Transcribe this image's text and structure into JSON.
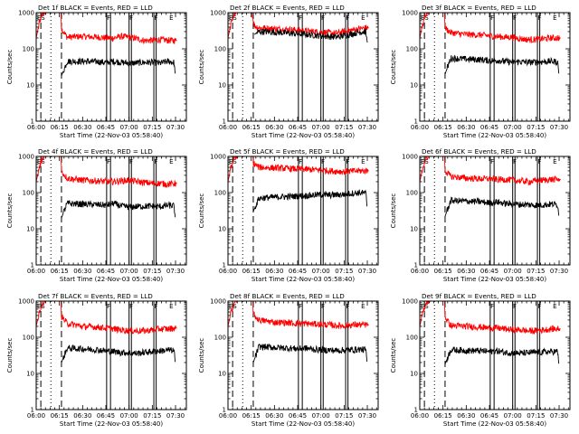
{
  "figure": {
    "background": "#ffffff",
    "event_color": "#000000",
    "lld_color": "#ff0000"
  },
  "chart_data": [
    {
      "type": "line",
      "title": "Det 1f BLACK = Events, RED = LLD",
      "xlabel": "Start Time (22-Nov-03 05:58:40)",
      "ylabel": "Counts/sec",
      "x_ticks": [
        "06:00",
        "06:15",
        "06:30",
        "06:45",
        "07:00",
        "07:15",
        "07:30"
      ],
      "y_ticks": [
        "1",
        "10",
        "100",
        "1000"
      ],
      "ylim": [
        1,
        1000
      ],
      "y_scale": "log",
      "marker_labels": [
        "ES",
        "F",
        "F",
        "F",
        "E"
      ],
      "series": [
        {
          "x": [
            "06:00",
            "06:02",
            "06:04",
            "06:08",
            "06:12",
            "06:16",
            "06:16:20",
            "06:20",
            "06:30",
            "06:40",
            "06:45",
            "06:50",
            "06:55",
            "07:00",
            "07:05",
            "07:10",
            "07:15",
            "07:20",
            "07:25",
            "07:30",
            "07:31"
          ],
          "values": [
            200,
            500,
            900,
            1300,
            1300,
            1300,
            360,
            210,
            220,
            210,
            200,
            200,
            220,
            210,
            190,
            170,
            170,
            180,
            170,
            170,
            170
          ],
          "color": "#ff0000"
        },
        {
          "x": [
            "06:16:20",
            "06:20",
            "06:30",
            "06:40",
            "06:45",
            "06:50",
            "06:55",
            "07:00",
            "07:05",
            "07:10",
            "07:15",
            "07:20",
            "07:25",
            "07:29",
            "07:30"
          ],
          "values": [
            18,
            45,
            45,
            44,
            42,
            45,
            42,
            40,
            41,
            42,
            42,
            40,
            45,
            42,
            18
          ],
          "color": "#000000"
        }
      ]
    },
    {
      "type": "line",
      "title": "Det 2f BLACK = Events, RED = LLD",
      "xlabel": "Start Time (22-Nov-03 05:58:40)",
      "ylabel": "Counts/sec",
      "x_ticks": [
        "06:00",
        "06:15",
        "06:30",
        "06:45",
        "07:00",
        "07:15",
        "07:30"
      ],
      "y_ticks": [
        "1",
        "10",
        "100",
        "1000"
      ],
      "ylim": [
        1,
        1000
      ],
      "y_scale": "log",
      "marker_labels": [
        "ES",
        "F",
        "F",
        "F",
        "E"
      ],
      "series": [
        {
          "x": [
            "06:00",
            "06:02",
            "06:04",
            "06:08",
            "06:12",
            "06:15",
            "06:17",
            "06:20",
            "06:30",
            "06:40",
            "06:45",
            "06:50",
            "06:55",
            "07:00",
            "07:05",
            "07:10",
            "07:15",
            "07:20",
            "07:25",
            "07:30",
            "07:31"
          ],
          "values": [
            200,
            500,
            900,
            1300,
            1300,
            1300,
            440,
            380,
            360,
            340,
            330,
            310,
            300,
            290,
            280,
            270,
            300,
            330,
            360,
            380,
            380
          ],
          "color": "#ff0000"
        },
        {
          "x": [
            "06:17",
            "06:20",
            "06:30",
            "06:40",
            "06:45",
            "06:50",
            "06:55",
            "07:00",
            "07:05",
            "07:10",
            "07:15",
            "07:20",
            "07:25",
            "07:29",
            "07:30"
          ],
          "values": [
            250,
            300,
            290,
            270,
            260,
            250,
            240,
            230,
            220,
            210,
            230,
            260,
            290,
            300,
            150
          ],
          "color": "#000000"
        }
      ]
    },
    {
      "type": "line",
      "title": "Det 3f BLACK = Events, RED = LLD",
      "xlabel": "Start Time (22-Nov-03 05:58:40)",
      "ylabel": "Counts/sec",
      "x_ticks": [
        "06:00",
        "06:15",
        "06:30",
        "06:45",
        "07:00",
        "07:15",
        "07:30"
      ],
      "y_ticks": [
        "1",
        "10",
        "100",
        "1000"
      ],
      "ylim": [
        1,
        1000
      ],
      "y_scale": "log",
      "marker_labels": [
        "ES",
        "F",
        "F",
        "F",
        "E"
      ],
      "series": [
        {
          "x": [
            "06:00",
            "06:02",
            "06:04",
            "06:08",
            "06:12",
            "06:16",
            "06:16:20",
            "06:20",
            "06:30",
            "06:40",
            "06:45",
            "06:50",
            "06:55",
            "07:00",
            "07:05",
            "07:10",
            "07:15",
            "07:20",
            "07:25",
            "07:30",
            "07:31"
          ],
          "values": [
            200,
            500,
            900,
            1300,
            1300,
            1300,
            380,
            280,
            250,
            240,
            230,
            220,
            210,
            210,
            190,
            180,
            180,
            190,
            200,
            200,
            200
          ],
          "color": "#ff0000"
        },
        {
          "x": [
            "06:16:20",
            "06:20",
            "06:30",
            "06:40",
            "06:45",
            "06:50",
            "06:55",
            "07:00",
            "07:05",
            "07:10",
            "07:15",
            "07:20",
            "07:25",
            "07:29",
            "07:30"
          ],
          "values": [
            20,
            55,
            52,
            50,
            47,
            48,
            45,
            43,
            44,
            42,
            43,
            44,
            45,
            44,
            18
          ],
          "color": "#000000"
        }
      ]
    },
    {
      "type": "line",
      "title": "Det 4f BLACK = Events, RED = LLD",
      "xlabel": "Start Time (22-Nov-03 05:58:40)",
      "ylabel": "Counts/sec",
      "x_ticks": [
        "06:00",
        "06:15",
        "06:30",
        "06:45",
        "07:00",
        "07:15",
        "07:30"
      ],
      "y_ticks": [
        "1",
        "10",
        "100",
        "1000"
      ],
      "ylim": [
        1,
        1000
      ],
      "y_scale": "log",
      "marker_labels": [
        "ES",
        "F",
        "F",
        "F",
        "E"
      ],
      "series": [
        {
          "x": [
            "06:00",
            "06:02",
            "06:04",
            "06:08",
            "06:12",
            "06:16",
            "06:16:20",
            "06:20",
            "06:30",
            "06:40",
            "06:45",
            "06:50",
            "06:55",
            "07:00",
            "07:05",
            "07:10",
            "07:15",
            "07:20",
            "07:25",
            "07:30",
            "07:31"
          ],
          "values": [
            200,
            500,
            900,
            1300,
            1300,
            1300,
            380,
            250,
            220,
            210,
            200,
            200,
            210,
            220,
            200,
            190,
            180,
            180,
            170,
            180,
            180
          ],
          "color": "#ff0000"
        },
        {
          "x": [
            "06:16:20",
            "06:20",
            "06:30",
            "06:40",
            "06:45",
            "06:50",
            "06:55",
            "07:00",
            "07:05",
            "07:10",
            "07:15",
            "07:20",
            "07:25",
            "07:29",
            "07:30"
          ],
          "values": [
            20,
            50,
            48,
            46,
            45,
            50,
            42,
            40,
            41,
            42,
            42,
            41,
            44,
            43,
            18
          ],
          "color": "#000000"
        }
      ]
    },
    {
      "type": "line",
      "title": "Det 5f BLACK = Events, RED = LLD",
      "xlabel": "Start Time (22-Nov-03 05:58:40)",
      "ylabel": "Counts/sec",
      "x_ticks": [
        "06:00",
        "06:15",
        "06:30",
        "06:45",
        "07:00",
        "07:15",
        "07:30"
      ],
      "y_ticks": [
        "1",
        "10",
        "100",
        "1000"
      ],
      "ylim": [
        1,
        1000
      ],
      "y_scale": "log",
      "marker_labels": [
        "ES",
        "F",
        "F",
        "F",
        "E"
      ],
      "series": [
        {
          "x": [
            "06:00",
            "06:02",
            "06:04",
            "06:08",
            "06:12",
            "06:16",
            "06:16:20",
            "06:20",
            "06:30",
            "06:40",
            "06:45",
            "06:50",
            "06:55",
            "07:00",
            "07:05",
            "07:10",
            "07:15",
            "07:20",
            "07:25",
            "07:30",
            "07:31"
          ],
          "values": [
            200,
            500,
            900,
            1300,
            1300,
            1300,
            650,
            500,
            480,
            460,
            450,
            440,
            430,
            420,
            400,
            390,
            380,
            390,
            400,
            400,
            400
          ],
          "color": "#ff0000"
        },
        {
          "x": [
            "06:16:20",
            "06:20",
            "06:30",
            "06:40",
            "06:45",
            "06:50",
            "06:55",
            "07:00",
            "07:05",
            "07:10",
            "07:15",
            "07:20",
            "07:25",
            "07:29",
            "07:30"
          ],
          "values": [
            30,
            70,
            75,
            78,
            80,
            82,
            85,
            88,
            85,
            86,
            90,
            95,
            100,
            96,
            35
          ],
          "color": "#000000"
        }
      ]
    },
    {
      "type": "line",
      "title": "Det 6f BLACK = Events, RED = LLD",
      "xlabel": "Start Time (22-Nov-03 05:58:40)",
      "ylabel": "Counts/sec",
      "x_ticks": [
        "06:00",
        "06:15",
        "06:30",
        "06:45",
        "07:00",
        "07:15",
        "07:30"
      ],
      "y_ticks": [
        "1",
        "10",
        "100",
        "1000"
      ],
      "ylim": [
        1,
        1000
      ],
      "y_scale": "log",
      "marker_labels": [
        "ES",
        "F",
        "F",
        "F",
        "E"
      ],
      "series": [
        {
          "x": [
            "06:00",
            "06:02",
            "06:04",
            "06:08",
            "06:12",
            "06:16",
            "06:16:20",
            "06:20",
            "06:30",
            "06:40",
            "06:45",
            "06:50",
            "06:55",
            "07:00",
            "07:05",
            "07:10",
            "07:15",
            "07:20",
            "07:25",
            "07:30",
            "07:31"
          ],
          "values": [
            200,
            500,
            900,
            1300,
            1300,
            1300,
            400,
            280,
            250,
            240,
            240,
            230,
            230,
            220,
            210,
            200,
            210,
            220,
            230,
            230,
            230
          ],
          "color": "#ff0000"
        },
        {
          "x": [
            "06:16:20",
            "06:20",
            "06:30",
            "06:40",
            "06:45",
            "06:50",
            "06:55",
            "07:00",
            "07:05",
            "07:10",
            "07:15",
            "07:20",
            "07:25",
            "07:29",
            "07:30"
          ],
          "values": [
            22,
            60,
            58,
            55,
            52,
            55,
            50,
            48,
            47,
            46,
            45,
            46,
            48,
            47,
            20
          ],
          "color": "#000000"
        }
      ]
    },
    {
      "type": "line",
      "title": "Det 7f BLACK = Events, RED = LLD",
      "xlabel": "Start Time (22-Nov-03 05:58:40)",
      "ylabel": "Counts/sec",
      "x_ticks": [
        "06:00",
        "06:15",
        "06:30",
        "06:45",
        "07:00",
        "07:15",
        "07:30"
      ],
      "y_ticks": [
        "1",
        "10",
        "100",
        "1000"
      ],
      "ylim": [
        1,
        1000
      ],
      "y_scale": "log",
      "marker_labels": [
        "ES",
        "F",
        "F",
        "F",
        "E"
      ],
      "series": [
        {
          "x": [
            "06:00",
            "06:02",
            "06:04",
            "06:08",
            "06:12",
            "06:16",
            "06:16:20",
            "06:20",
            "06:30",
            "06:40",
            "06:45",
            "06:50",
            "06:55",
            "07:00",
            "07:05",
            "07:10",
            "07:15",
            "07:20",
            "07:25",
            "07:30",
            "07:31"
          ],
          "values": [
            200,
            500,
            900,
            1300,
            1300,
            1300,
            380,
            240,
            200,
            190,
            180,
            170,
            160,
            150,
            150,
            150,
            160,
            170,
            170,
            180,
            180
          ],
          "color": "#ff0000"
        },
        {
          "x": [
            "06:16:20",
            "06:20",
            "06:30",
            "06:40",
            "06:45",
            "06:50",
            "06:55",
            "07:00",
            "07:05",
            "07:10",
            "07:15",
            "07:20",
            "07:25",
            "07:29",
            "07:30"
          ],
          "values": [
            20,
            50,
            48,
            45,
            42,
            40,
            38,
            37,
            36,
            38,
            40,
            42,
            44,
            43,
            18
          ],
          "color": "#000000"
        }
      ]
    },
    {
      "type": "line",
      "title": "Det 8f BLACK = Events, RED = LLD",
      "xlabel": "Start Time (22-Nov-03 05:58:40)",
      "ylabel": "Counts/sec",
      "x_ticks": [
        "06:00",
        "06:15",
        "06:30",
        "06:45",
        "07:00",
        "07:15",
        "07:30"
      ],
      "y_ticks": [
        "1",
        "10",
        "100",
        "1000"
      ],
      "ylim": [
        1,
        1000
      ],
      "y_scale": "log",
      "marker_labels": [
        "ES",
        "F",
        "F",
        "F",
        "E"
      ],
      "series": [
        {
          "x": [
            "06:00",
            "06:02",
            "06:04",
            "06:08",
            "06:12",
            "06:16",
            "06:16:20",
            "06:20",
            "06:30",
            "06:40",
            "06:45",
            "06:50",
            "06:55",
            "07:00",
            "07:05",
            "07:10",
            "07:15",
            "07:20",
            "07:25",
            "07:30",
            "07:31"
          ],
          "values": [
            200,
            500,
            900,
            1300,
            1300,
            1300,
            420,
            300,
            260,
            250,
            240,
            240,
            230,
            230,
            220,
            210,
            210,
            220,
            220,
            220,
            220
          ],
          "color": "#ff0000"
        },
        {
          "x": [
            "06:16:20",
            "06:20",
            "06:30",
            "06:40",
            "06:45",
            "06:50",
            "06:55",
            "07:00",
            "07:05",
            "07:10",
            "07:15",
            "07:20",
            "07:25",
            "07:29",
            "07:30"
          ],
          "values": [
            20,
            55,
            52,
            50,
            48,
            50,
            46,
            45,
            44,
            43,
            44,
            45,
            46,
            45,
            18
          ],
          "color": "#000000"
        }
      ]
    },
    {
      "type": "line",
      "title": "Det 9f BLACK = Events, RED = LLD",
      "xlabel": "Start Time (22-Nov-03 05:58:40)",
      "ylabel": "Counts/sec",
      "x_ticks": [
        "06:00",
        "06:15",
        "06:30",
        "06:45",
        "07:00",
        "07:15",
        "07:30"
      ],
      "y_ticks": [
        "1",
        "10",
        "100",
        "1000"
      ],
      "ylim": [
        1,
        1000
      ],
      "y_scale": "log",
      "marker_labels": [
        "ES",
        "F",
        "F",
        "F",
        "E"
      ],
      "series": [
        {
          "x": [
            "06:00",
            "06:02",
            "06:04",
            "06:08",
            "06:12",
            "06:16",
            "06:16:20",
            "06:20",
            "06:30",
            "06:40",
            "06:45",
            "06:50",
            "06:55",
            "07:00",
            "07:05",
            "07:10",
            "07:15",
            "07:20",
            "07:25",
            "07:30",
            "07:31"
          ],
          "values": [
            200,
            500,
            900,
            1300,
            1300,
            1300,
            360,
            210,
            200,
            190,
            180,
            180,
            170,
            160,
            160,
            150,
            150,
            160,
            170,
            170,
            170
          ],
          "color": "#ff0000"
        },
        {
          "x": [
            "06:16:20",
            "06:20",
            "06:30",
            "06:40",
            "06:45",
            "06:50",
            "06:55",
            "07:00",
            "07:05",
            "07:10",
            "07:15",
            "07:20",
            "07:25",
            "07:29",
            "07:30"
          ],
          "values": [
            18,
            45,
            43,
            42,
            40,
            42,
            38,
            37,
            36,
            37,
            38,
            39,
            40,
            40,
            16
          ],
          "color": "#000000"
        }
      ]
    }
  ]
}
